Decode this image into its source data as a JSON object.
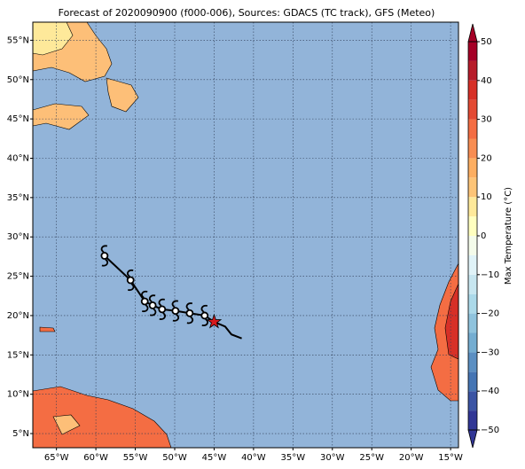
{
  "chart_data": {
    "type": "map",
    "title": "Forecast of 2020090900 (f000-006), Sources: GDACS (TC track), GFS (Meteo)",
    "xlim": [
      -68,
      -14
    ],
    "ylim": [
      3.2,
      57.3
    ],
    "grid": true,
    "xticks": [
      {
        "value": -65,
        "label": "65°W"
      },
      {
        "value": -60,
        "label": "60°W"
      },
      {
        "value": -55,
        "label": "55°W"
      },
      {
        "value": -50,
        "label": "50°W"
      },
      {
        "value": -45,
        "label": "45°W"
      },
      {
        "value": -40,
        "label": "40°W"
      },
      {
        "value": -35,
        "label": "35°W"
      },
      {
        "value": -30,
        "label": "30°W"
      },
      {
        "value": -25,
        "label": "25°W"
      },
      {
        "value": -20,
        "label": "20°W"
      },
      {
        "value": -15,
        "label": "15°W"
      }
    ],
    "yticks": [
      {
        "value": 5,
        "label": "5°N"
      },
      {
        "value": 10,
        "label": "10°N"
      },
      {
        "value": 15,
        "label": "15°N"
      },
      {
        "value": 20,
        "label": "20°N"
      },
      {
        "value": 25,
        "label": "25°N"
      },
      {
        "value": 30,
        "label": "30°N"
      },
      {
        "value": 35,
        "label": "35°N"
      },
      {
        "value": 40,
        "label": "40°N"
      },
      {
        "value": 45,
        "label": "45°N"
      },
      {
        "value": 50,
        "label": "50°N"
      },
      {
        "value": 55,
        "label": "55°N"
      }
    ],
    "track": {
      "x": [
        -58.9,
        -55.6,
        -53.8,
        -52.8,
        -51.6,
        -49.9,
        -48.1,
        -46.2,
        -45.0,
        -43.6,
        -42.8,
        -41.5
      ],
      "y": [
        27.6,
        24.5,
        21.8,
        21.3,
        20.8,
        20.6,
        20.3,
        20.0,
        19.2,
        18.6,
        17.6,
        17.1
      ]
    },
    "storms": {
      "x": [
        -58.9,
        -55.6,
        -53.8,
        -52.8,
        -51.6,
        -49.9,
        -48.1,
        -46.2
      ],
      "y": [
        27.6,
        24.5,
        21.8,
        21.3,
        20.8,
        20.6,
        20.3,
        20.0
      ]
    },
    "current": {
      "x": -45.0,
      "y": 19.2,
      "color": "#d7191c"
    },
    "colorbar": {
      "label": "Max Temperature (°C)",
      "lim": [
        -50,
        50
      ],
      "ticks": [
        {
          "value": -50,
          "label": "−50"
        },
        {
          "value": -40,
          "label": "−40"
        },
        {
          "value": -30,
          "label": "−30"
        },
        {
          "value": -20,
          "label": "−20"
        },
        {
          "value": -10,
          "label": "−10"
        },
        0,
        10,
        20,
        30,
        40,
        50
      ],
      "colors": [
        "#313695",
        "#3b54a4",
        "#4575b4",
        "#5b8fc2",
        "#74add1",
        "#8fc3dd",
        "#abd9e9",
        "#c7e6f0",
        "#e0f3f8",
        "#f4fbea",
        "#ffffbf",
        "#fee99a",
        "#fdc477",
        "#fdae61",
        "#f88d52",
        "#f46d43",
        "#e34a33",
        "#d73027",
        "#b71c2a",
        "#a50026"
      ]
    }
  }
}
